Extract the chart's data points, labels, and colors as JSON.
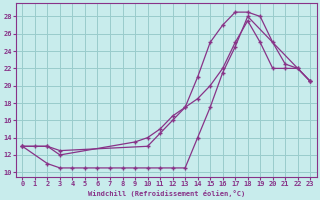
{
  "xlabel": "Windchill (Refroidissement éolien,°C)",
  "bg_color": "#c8ecec",
  "line_color": "#883388",
  "grid_color": "#99cccc",
  "xlim": [
    -0.5,
    23.5
  ],
  "ylim": [
    9.5,
    29.5
  ],
  "xticks": [
    0,
    1,
    2,
    3,
    4,
    5,
    6,
    7,
    8,
    9,
    10,
    11,
    12,
    13,
    14,
    15,
    16,
    17,
    18,
    19,
    20,
    21,
    22,
    23
  ],
  "yticks": [
    10,
    12,
    14,
    16,
    18,
    20,
    22,
    24,
    26,
    28
  ],
  "line1_x": [
    0,
    2,
    3,
    4,
    5,
    6,
    7,
    8,
    9,
    10,
    11,
    12,
    13,
    14,
    15,
    16,
    17,
    18,
    23
  ],
  "line1_y": [
    13,
    11,
    10.5,
    10.5,
    10.5,
    10.5,
    10.5,
    10.5,
    10.5,
    10.5,
    10.5,
    10.5,
    10.5,
    14,
    17.5,
    21.5,
    24.5,
    28,
    20.5
  ],
  "line2_x": [
    0,
    1,
    2,
    3,
    10,
    11,
    12,
    13,
    14,
    15,
    16,
    17,
    18,
    19,
    20,
    21,
    22,
    23
  ],
  "line2_y": [
    13,
    13,
    13,
    12.5,
    13,
    14.5,
    16,
    17.5,
    21,
    25,
    27,
    28.5,
    28.5,
    28,
    25,
    22.5,
    22,
    20.5
  ],
  "line3_x": [
    0,
    2,
    3,
    9,
    10,
    11,
    12,
    13,
    14,
    15,
    16,
    17,
    18,
    19,
    20,
    21,
    22,
    23
  ],
  "line3_y": [
    13,
    13,
    12,
    13.5,
    14,
    15,
    16.5,
    17.5,
    18.5,
    20,
    22,
    25,
    27.5,
    25,
    22,
    22,
    22,
    20.5
  ]
}
